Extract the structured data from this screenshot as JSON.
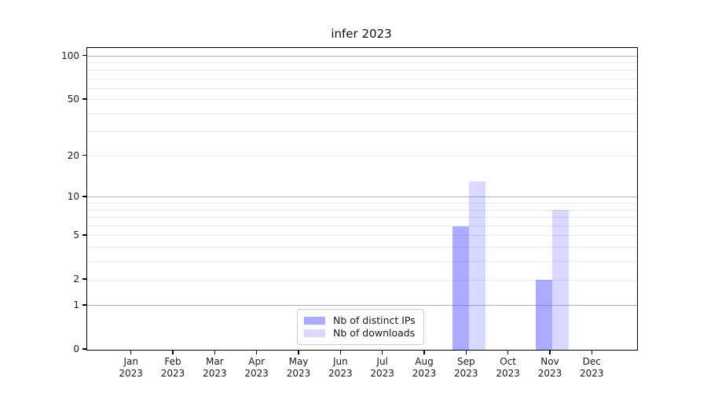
{
  "title": "infer 2023",
  "colors": {
    "bar_base": "#6666ff",
    "bar_ips_alpha": 0.55,
    "bar_downloads_alpha": 0.25,
    "grid_major": "#b2b2b2",
    "grid_minor": "#e7e7e7",
    "axis_spine": "#000000",
    "text": "#1a1a1a",
    "legend_border": "#cccccc"
  },
  "chart_data": {
    "type": "bar",
    "title": "infer 2023",
    "categories": [
      "Jan",
      "Feb",
      "Mar",
      "Apr",
      "May",
      "Jun",
      "Jul",
      "Aug",
      "Sep",
      "Oct",
      "Nov",
      "Dec"
    ],
    "category_year": "2023",
    "series": [
      {
        "key": "distinct-ips",
        "name": "Nb of distinct IPs",
        "color": "rgba(102,102,255,0.55)",
        "values": [
          0,
          0,
          0,
          0,
          0,
          0,
          0,
          0,
          6,
          0,
          2,
          0
        ]
      },
      {
        "key": "downloads",
        "name": "Nb of downloads",
        "color": "rgba(102,102,255,0.25)",
        "values": [
          0,
          0,
          0,
          0,
          0,
          0,
          0,
          0,
          13,
          0,
          8,
          0
        ]
      }
    ],
    "xlabel": "",
    "ylabel": "",
    "yscale": "log1p",
    "ylim": [
      0,
      114
    ],
    "yticks_labeled": [
      0,
      1,
      2,
      5,
      10,
      20,
      50,
      100
    ],
    "ygrid_major": [
      1,
      10,
      100
    ],
    "ygrid_minor": [
      2,
      3,
      4,
      5,
      6,
      7,
      8,
      9,
      20,
      30,
      40,
      50,
      60,
      70,
      80,
      90
    ],
    "grid": true,
    "legend_position": "lower center"
  }
}
